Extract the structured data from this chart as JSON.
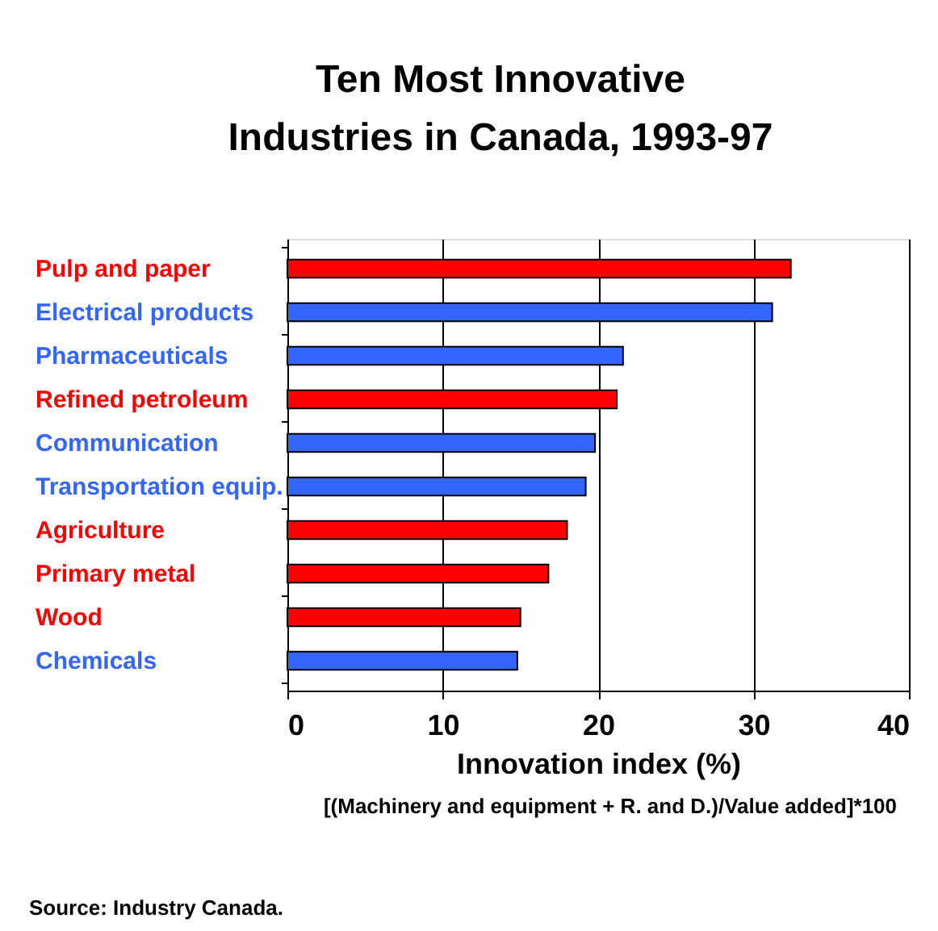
{
  "chart_data": {
    "type": "bar",
    "orientation": "horizontal",
    "title": "Ten Most Innovative Industries in Canada, 1993-97",
    "categories": [
      "Pulp and paper",
      "Electrical products",
      "Pharmaceuticals",
      "Refined petroleum",
      "Communication",
      "Transportation equip.",
      "Agriculture",
      "Primary metal",
      "Wood",
      "Chemicals"
    ],
    "values": [
      32.4,
      31.2,
      21.6,
      21.2,
      19.8,
      19.2,
      18.0,
      16.8,
      15.0,
      14.8
    ],
    "colors": [
      "#ff0000",
      "#3366ff",
      "#3366ff",
      "#ff0000",
      "#3366ff",
      "#3366ff",
      "#ff0000",
      "#ff0000",
      "#ff0000",
      "#3366ff"
    ],
    "xlim": [
      0,
      40
    ],
    "xticks": [
      0,
      10,
      20,
      30,
      40
    ],
    "xlabel": "Innovation index (%)",
    "grid": "x",
    "annotations": [
      "[(Machinery and equipment + R. and D.)/Value added]*100",
      "Source:  Industry Canada."
    ]
  }
}
